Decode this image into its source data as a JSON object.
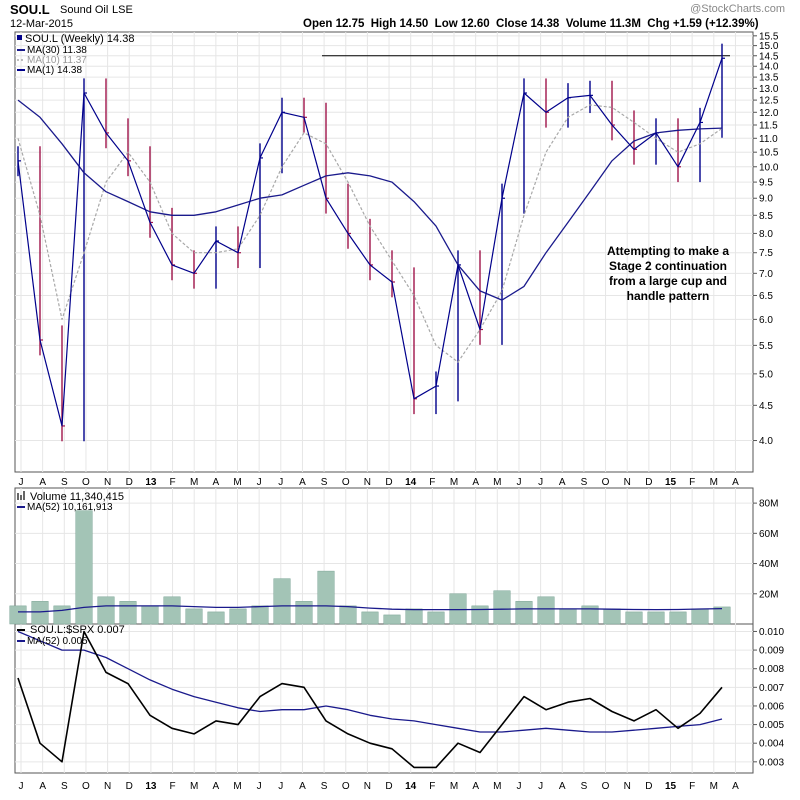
{
  "header": {
    "symbol": "SOU.L",
    "name": "Sound Oil",
    "exchange": "LSE",
    "date": "12-Mar-2015",
    "quote": "Open 12.75  High 14.50  Low 12.60  Close 14.38  Volume 11.3M  Chg +1.59 (+12.39%)",
    "watermark": "@StockCharts.com"
  },
  "price_panel": {
    "legend_title": "SOU.L (Weekly) 14.38",
    "legend_ma30": "MA(30) 11.38",
    "legend_ma10": "MA(10) 11.37",
    "legend_ma1": "MA(1) 14.38",
    "annotation_lines": [
      "Attempting to make a",
      "Stage 2 continuation",
      "from a large cup and",
      "handle pattern"
    ],
    "ticks": [
      "15.5",
      "15.0",
      "14.5",
      "14.0",
      "13.5",
      "13.0",
      "12.5",
      "12.0",
      "11.5",
      "11.0",
      "10.5",
      "10.0",
      "9.5",
      "9.0",
      "8.5",
      "8.0",
      "7.5",
      "7.0",
      "6.5",
      "6.0",
      "5.5",
      "5.0",
      "4.5",
      "4.0"
    ]
  },
  "volume_panel": {
    "legend_title": "Volume 11,340,415",
    "legend_ma": "MA(52) 10,161,913",
    "ticks": [
      "80M",
      "60M",
      "40M",
      "20M"
    ]
  },
  "ratio_panel": {
    "legend_title": "SOU.L:$SPX 0.007",
    "legend_ma": "MA(52) 0.005",
    "ticks": [
      "0.010",
      "0.009",
      "0.008",
      "0.007",
      "0.006",
      "0.005",
      "0.004",
      "0.003"
    ]
  },
  "x_axis": {
    "labels": [
      "J",
      "A",
      "S",
      "O",
      "N",
      "D",
      "13",
      "F",
      "M",
      "A",
      "M",
      "J",
      "J",
      "A",
      "S",
      "O",
      "N",
      "D",
      "14",
      "F",
      "M",
      "A",
      "M",
      "J",
      "J",
      "A",
      "S",
      "O",
      "N",
      "D",
      "15",
      "F",
      "M",
      "A"
    ]
  },
  "colors": {
    "up": "#00008b",
    "down": "#a0144a",
    "ma30": "#1a1a8c",
    "ma10": "#a8a8a8",
    "volume_bar": "#a3c4b6",
    "ratio": "#000000",
    "grid": "#e6e6e6"
  },
  "chart_data": [
    {
      "type": "line",
      "title": "SOU.L (Weekly) 14.38",
      "x": [
        "2012-07",
        "2012-08",
        "2012-09",
        "2012-10",
        "2012-11",
        "2012-12",
        "2013-01",
        "2013-02",
        "2013-03",
        "2013-04",
        "2013-05",
        "2013-06",
        "2013-07",
        "2013-08",
        "2013-09",
        "2013-10",
        "2013-11",
        "2013-12",
        "2014-01",
        "2014-02",
        "2014-03",
        "2014-04",
        "2014-05",
        "2014-06",
        "2014-07",
        "2014-08",
        "2014-09",
        "2014-10",
        "2014-11",
        "2014-12",
        "2015-01",
        "2015-02",
        "2015-03"
      ],
      "series": [
        {
          "name": "MA(1) 14.38",
          "values": [
            10.2,
            5.6,
            4.2,
            12.8,
            11.2,
            10.2,
            8.3,
            7.2,
            7.0,
            7.8,
            7.5,
            10.3,
            12.0,
            11.8,
            9.0,
            8.0,
            7.2,
            6.8,
            4.6,
            4.8,
            7.2,
            5.8,
            9.0,
            12.8,
            12.0,
            12.6,
            12.7,
            11.5,
            10.6,
            11.2,
            10.0,
            11.6,
            14.38
          ]
        },
        {
          "name": "MA(30) 11.38",
          "values": [
            12.5,
            11.8,
            10.8,
            9.8,
            9.2,
            8.9,
            8.6,
            8.5,
            8.5,
            8.6,
            8.8,
            9.0,
            9.1,
            9.4,
            9.7,
            9.8,
            9.7,
            9.5,
            8.9,
            8.2,
            7.2,
            6.6,
            6.4,
            6.7,
            7.5,
            8.3,
            9.2,
            10.2,
            10.9,
            11.2,
            11.3,
            11.35,
            11.38
          ]
        },
        {
          "name": "MA(10) 11.37",
          "values": [
            11.0,
            8.5,
            6.0,
            7.5,
            9.5,
            10.5,
            9.5,
            8.0,
            7.5,
            7.5,
            7.6,
            8.5,
            10.0,
            11.2,
            10.8,
            9.5,
            8.2,
            7.3,
            6.5,
            5.5,
            5.2,
            5.8,
            6.6,
            8.5,
            10.5,
            11.8,
            12.3,
            12.2,
            11.6,
            11.0,
            10.5,
            10.8,
            11.37
          ]
        }
      ],
      "ylim": [
        3.6,
        15.7
      ],
      "ytick_labels": [
        "15.5",
        "15.0",
        "14.5",
        "14.0",
        "13.5",
        "13.0",
        "12.5",
        "12.0",
        "11.5",
        "11.0",
        "10.5",
        "10.0",
        "9.5",
        "9.0",
        "8.5",
        "8.0",
        "7.5",
        "7.0",
        "6.5",
        "6.0",
        "5.5",
        "5.0",
        "4.5",
        "4.0"
      ],
      "resistance_level": 14.5,
      "scale": "log"
    },
    {
      "type": "bar",
      "title": "Volume 11,340,415",
      "x": [
        "2012-07",
        "2012-08",
        "2012-09",
        "2012-10",
        "2012-11",
        "2012-12",
        "2013-01",
        "2013-02",
        "2013-03",
        "2013-04",
        "2013-05",
        "2013-06",
        "2013-07",
        "2013-08",
        "2013-09",
        "2013-10",
        "2013-11",
        "2013-12",
        "2014-01",
        "2014-02",
        "2014-03",
        "2014-04",
        "2014-05",
        "2014-06",
        "2014-07",
        "2014-08",
        "2014-09",
        "2014-10",
        "2014-11",
        "2014-12",
        "2015-01",
        "2015-02",
        "2015-03"
      ],
      "series": [
        {
          "name": "Volume",
          "values": [
            12,
            15,
            12,
            75,
            18,
            15,
            12,
            18,
            10,
            8,
            10,
            12,
            30,
            15,
            35,
            12,
            8,
            6,
            10,
            8,
            20,
            12,
            22,
            15,
            18,
            10,
            12,
            10,
            8,
            8,
            8,
            10,
            11.3
          ]
        },
        {
          "name": "MA(52) 10,161,913",
          "values": [
            8,
            8,
            9,
            11,
            12,
            12,
            12,
            12,
            11.5,
            11,
            11,
            11.5,
            12,
            12,
            12,
            11.5,
            10.5,
            9.8,
            9.5,
            9.5,
            9.5,
            9.6,
            9.8,
            10,
            10,
            10,
            10,
            9.8,
            9.6,
            9.5,
            9.6,
            9.9,
            10.16
          ]
        }
      ],
      "ylim": [
        0,
        90
      ],
      "ytick_labels": [
        "80M",
        "60M",
        "40M",
        "20M"
      ],
      "unit": "M"
    },
    {
      "type": "line",
      "title": "SOU.L:$SPX 0.007",
      "x": [
        "2012-07",
        "2012-08",
        "2012-09",
        "2012-10",
        "2012-11",
        "2012-12",
        "2013-01",
        "2013-02",
        "2013-03",
        "2013-04",
        "2013-05",
        "2013-06",
        "2013-07",
        "2013-08",
        "2013-09",
        "2013-10",
        "2013-11",
        "2013-12",
        "2014-01",
        "2014-02",
        "2014-03",
        "2014-04",
        "2014-05",
        "2014-06",
        "2014-07",
        "2014-08",
        "2014-09",
        "2014-10",
        "2014-11",
        "2014-12",
        "2015-01",
        "2015-02",
        "2015-03"
      ],
      "series": [
        {
          "name": "SOU.L:$SPX 0.007",
          "values": [
            0.0075,
            0.004,
            0.003,
            0.01,
            0.0078,
            0.0072,
            0.0055,
            0.0048,
            0.0045,
            0.0052,
            0.005,
            0.0065,
            0.0072,
            0.007,
            0.0052,
            0.0045,
            0.004,
            0.0037,
            0.0027,
            0.0027,
            0.004,
            0.0035,
            0.005,
            0.0065,
            0.0058,
            0.0062,
            0.0064,
            0.0057,
            0.0052,
            0.0058,
            0.0048,
            0.0056,
            0.007
          ]
        },
        {
          "name": "MA(52) 0.005",
          "values": [
            0.01,
            0.0095,
            0.009,
            0.009,
            0.0086,
            0.008,
            0.0074,
            0.0069,
            0.0065,
            0.0062,
            0.0059,
            0.0057,
            0.0058,
            0.0058,
            0.006,
            0.0058,
            0.0055,
            0.0053,
            0.0052,
            0.005,
            0.0048,
            0.0046,
            0.0046,
            0.0047,
            0.0048,
            0.0047,
            0.0046,
            0.0046,
            0.0047,
            0.0048,
            0.0049,
            0.005,
            0.0053
          ]
        }
      ],
      "ylim": [
        0.0024,
        0.0104
      ],
      "ytick_labels": [
        "0.010",
        "0.009",
        "0.008",
        "0.007",
        "0.006",
        "0.005",
        "0.004",
        "0.003"
      ]
    }
  ]
}
